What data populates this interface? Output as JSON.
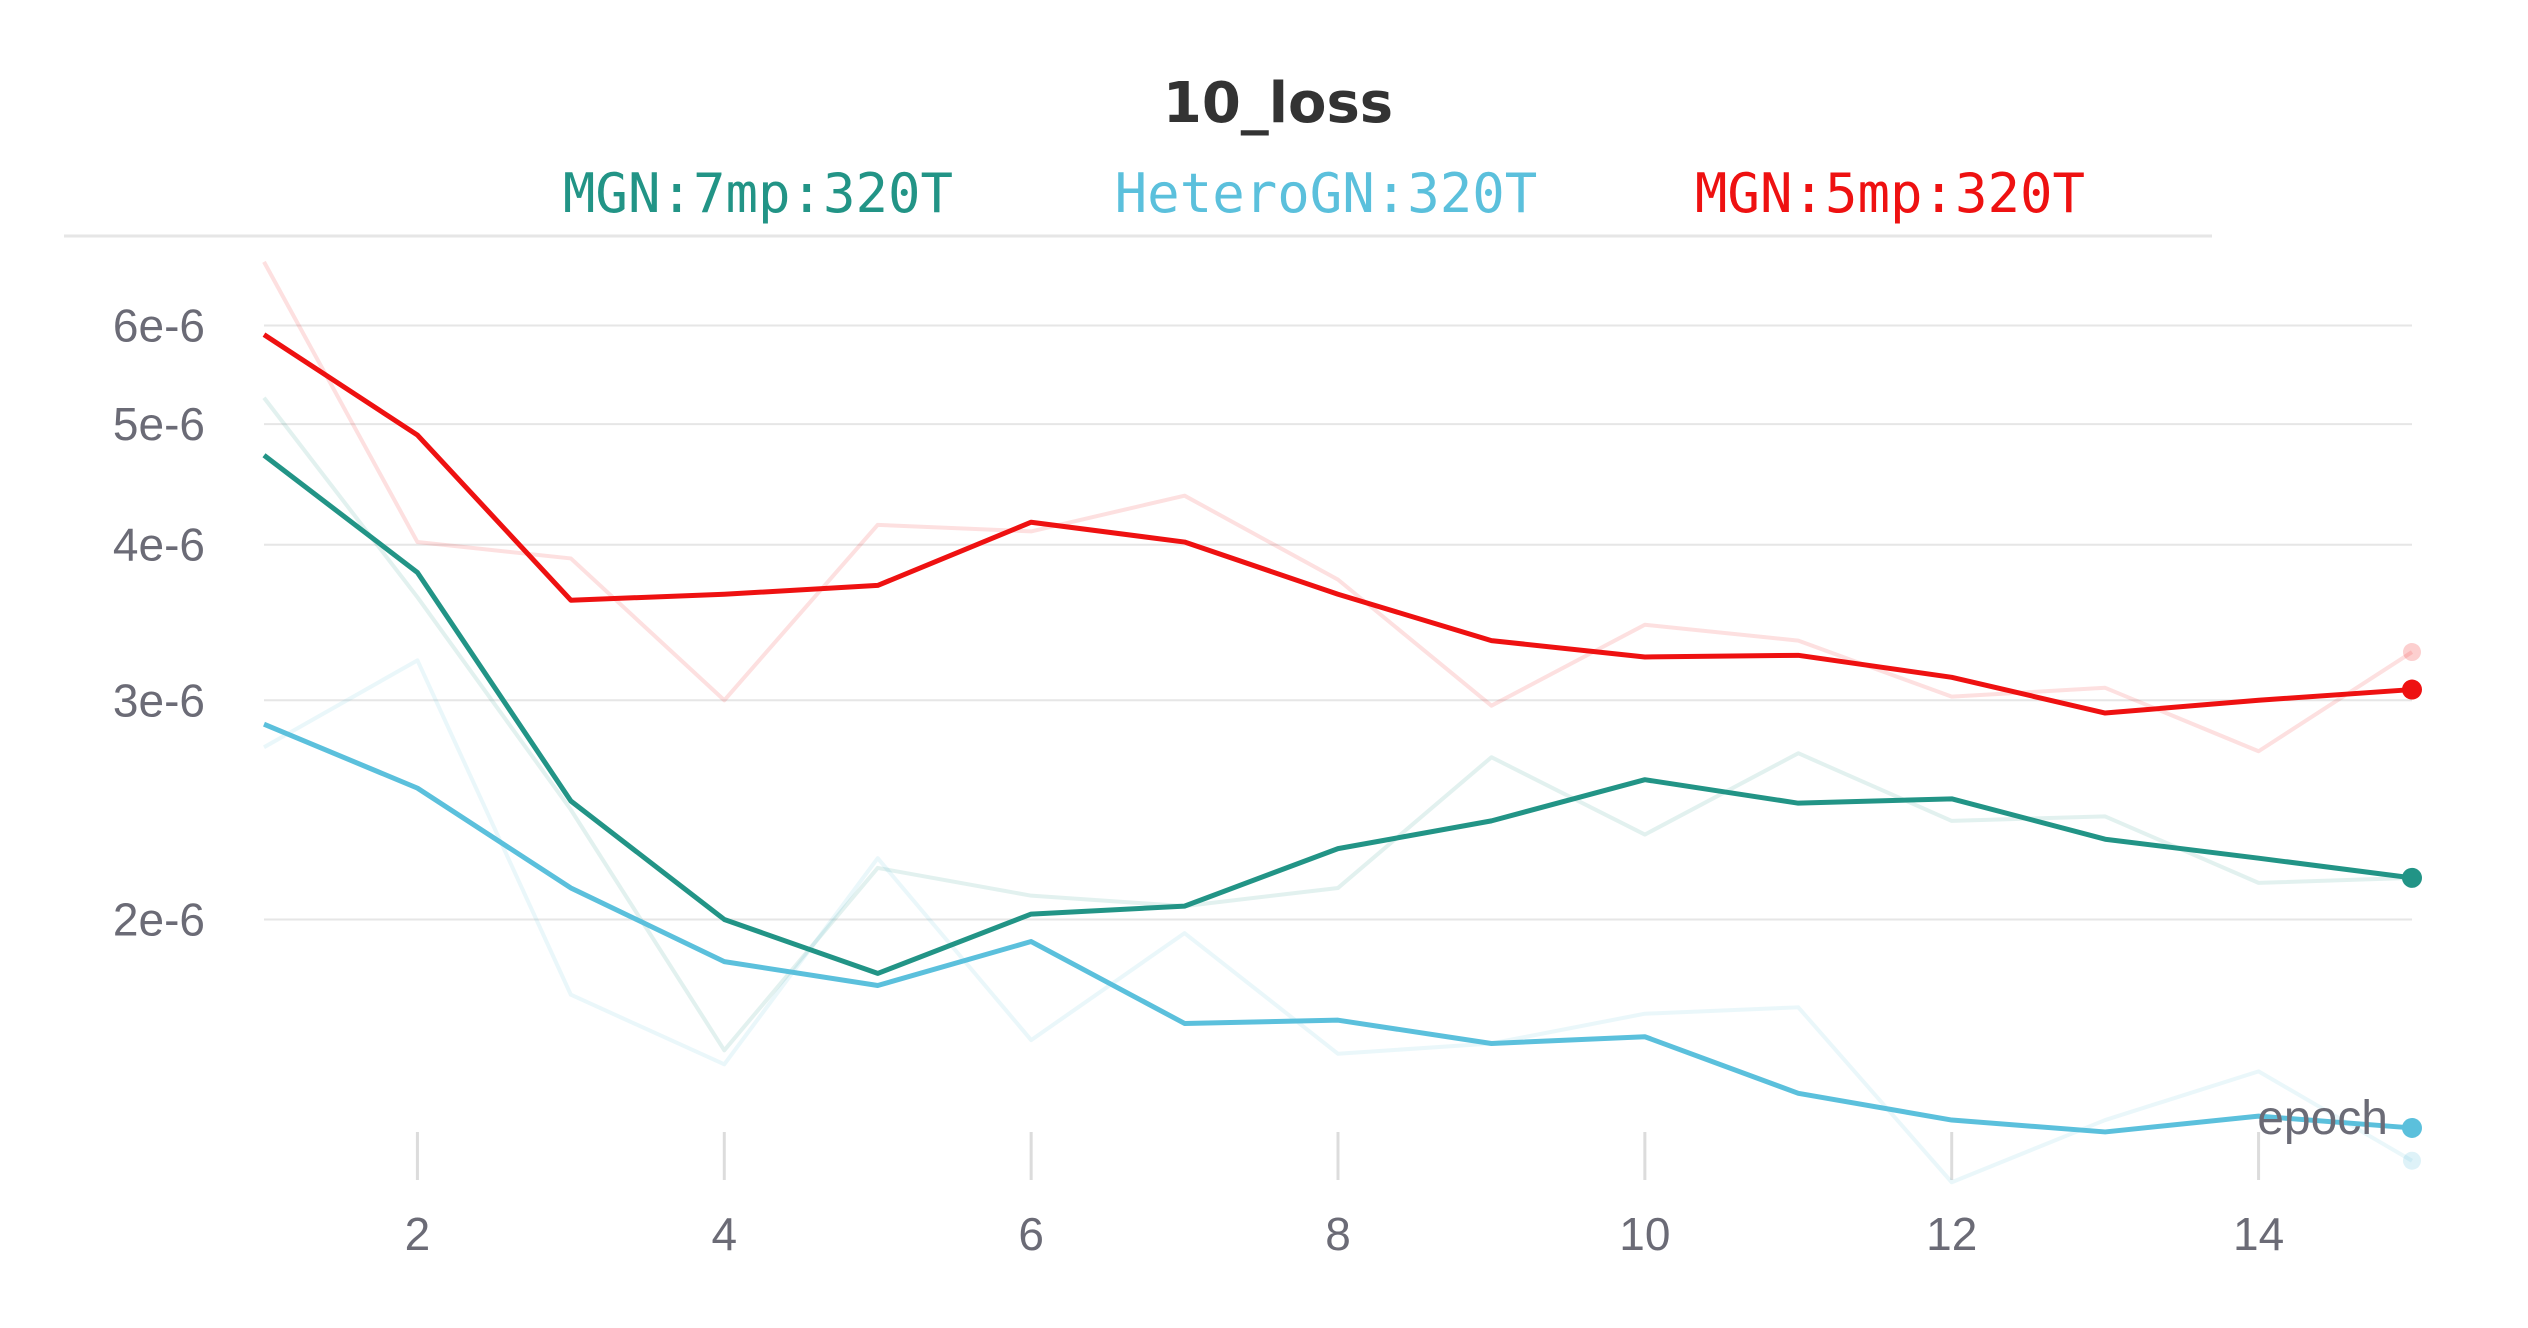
{
  "chart_data": {
    "type": "line",
    "title": "10_loss",
    "xlabel": "epoch",
    "ylabel": "",
    "y_scale": "log",
    "x_ticks": [
      2,
      4,
      6,
      8,
      10,
      12,
      14
    ],
    "x_tick_labels": [
      "2",
      "4",
      "6",
      "8",
      "10",
      "12",
      "14"
    ],
    "y_ticks": [
      2e-06,
      3e-06,
      4e-06,
      5e-06,
      6e-06
    ],
    "y_tick_labels": [
      "2e-6",
      "3e-6",
      "4e-6",
      "5e-6",
      "6e-6"
    ],
    "xlim": [
      1,
      15
    ],
    "ylim": [
      1.33e-06,
      6.9e-06
    ],
    "grid": true,
    "legend_position": "top",
    "x": [
      1,
      2,
      3,
      4,
      5,
      6,
      7,
      8,
      9,
      10,
      11,
      12,
      13,
      14,
      15
    ],
    "series": [
      {
        "name": "MGN:7mp:320T",
        "color": "#229486",
        "values": [
          4.72e-06,
          3.8e-06,
          2.49e-06,
          2e-06,
          1.81e-06,
          2.02e-06,
          2.05e-06,
          2.28e-06,
          2.4e-06,
          2.59e-06,
          2.48e-06,
          2.5e-06,
          2.32e-06,
          2.24e-06,
          2.16e-06
        ],
        "raw_values": [
          5.25e-06,
          3.63e-06,
          2.45e-06,
          1.57e-06,
          2.2e-06,
          2.09e-06,
          2.05e-06,
          2.12e-06,
          2.7e-06,
          2.34e-06,
          2.72e-06,
          2.4e-06,
          2.42e-06,
          2.14e-06,
          2.16e-06
        ]
      },
      {
        "name": "HeteroGN:320T",
        "color": "#5bc0dc",
        "values": [
          2.87e-06,
          2.55e-06,
          2.12e-06,
          1.85e-06,
          1.77e-06,
          1.92e-06,
          1.65e-06,
          1.66e-06,
          1.59e-06,
          1.61e-06,
          1.45e-06,
          1.38e-06,
          1.35e-06,
          1.39e-06,
          1.36e-06
        ],
        "raw_values": [
          2.75e-06,
          3.23e-06,
          1.74e-06,
          1.53e-06,
          2.24e-06,
          1.6e-06,
          1.95e-06,
          1.56e-06,
          1.59e-06,
          1.68e-06,
          1.7e-06,
          1.23e-06,
          1.38e-06,
          1.51e-06,
          1.28e-06
        ]
      },
      {
        "name": "MGN:5mp:320T",
        "color": "#ee1111",
        "values": [
          5.9e-06,
          4.9e-06,
          3.61e-06,
          3.65e-06,
          3.71e-06,
          4.17e-06,
          4.02e-06,
          3.65e-06,
          3.35e-06,
          3.25e-06,
          3.26e-06,
          3.13e-06,
          2.93e-06,
          3e-06,
          3.06e-06
        ],
        "raw_values": [
          6.75e-06,
          4.02e-06,
          3.9e-06,
          3e-06,
          4.15e-06,
          4.1e-06,
          4.38e-06,
          3.75e-06,
          2.97e-06,
          3.45e-06,
          3.35e-06,
          3.02e-06,
          3.07e-06,
          2.73e-06,
          3.28e-06
        ]
      }
    ]
  }
}
